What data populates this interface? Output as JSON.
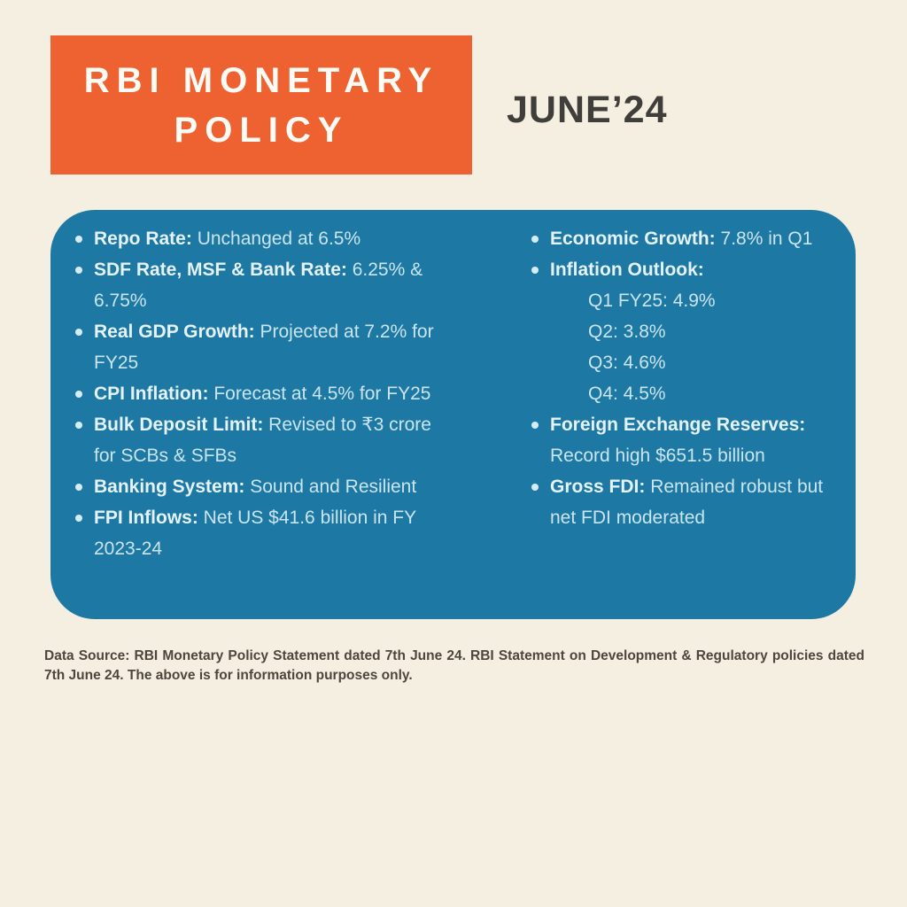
{
  "header": {
    "title_line1": "RBI MONETARY",
    "title_line2": "POLICY",
    "date_label": "JUNE’24"
  },
  "panel": {
    "left_items": [
      {
        "label": "Repo Rate:",
        "rest": "Unchanged at 6.5%"
      },
      {
        "label": "SDF Rate, MSF & Bank Rate:",
        "rest": "6.25% & 6.75%"
      },
      {
        "label": "Real GDP Growth:",
        "rest": "Projected at 7.2% for FY25"
      },
      {
        "label": "CPI Inflation:",
        "rest": "Forecast at 4.5% for FY25"
      },
      {
        "label": "Bulk Deposit Limit:",
        "rest": "Revised to ₹3 crore for SCBs & SFBs"
      },
      {
        "label": "Banking System:",
        "rest": "Sound and Resilient"
      },
      {
        "label": "FPI Inflows:",
        "rest": "Net US $41.6 billion in FY 2023-24"
      }
    ],
    "right_items": [
      {
        "label": "Economic Growth:",
        "rest": "7.8% in Q1"
      },
      {
        "label": "Inflation Outlook:",
        "rest": "",
        "sub": [
          "Q1 FY25: 4.9%",
          "Q2: 3.8%",
          "Q3: 4.6%",
          "Q4: 4.5%"
        ]
      },
      {
        "label": "Foreign Exchange Reserves:",
        "rest": "Record high $651.5 billion"
      },
      {
        "label": "Gross FDI:",
        "rest": "Remained robust but net FDI moderated"
      }
    ]
  },
  "footer": {
    "text": "Data Source: RBI Monetary Policy Statement dated 7th June 24. RBI Statement on Development & Regulatory policies dated 7th June 24. The above is for information purposes only."
  },
  "colors": {
    "background": "#f5efe1",
    "header_orange": "#ee6231",
    "panel_blue": "#1e78a4",
    "title_text": "#fdfbf5",
    "date_text": "#3f3e3b",
    "panel_bold_text": "#e4f2f9",
    "panel_regular_text": "#c9e5f0",
    "footer_text": "#4e463e"
  }
}
